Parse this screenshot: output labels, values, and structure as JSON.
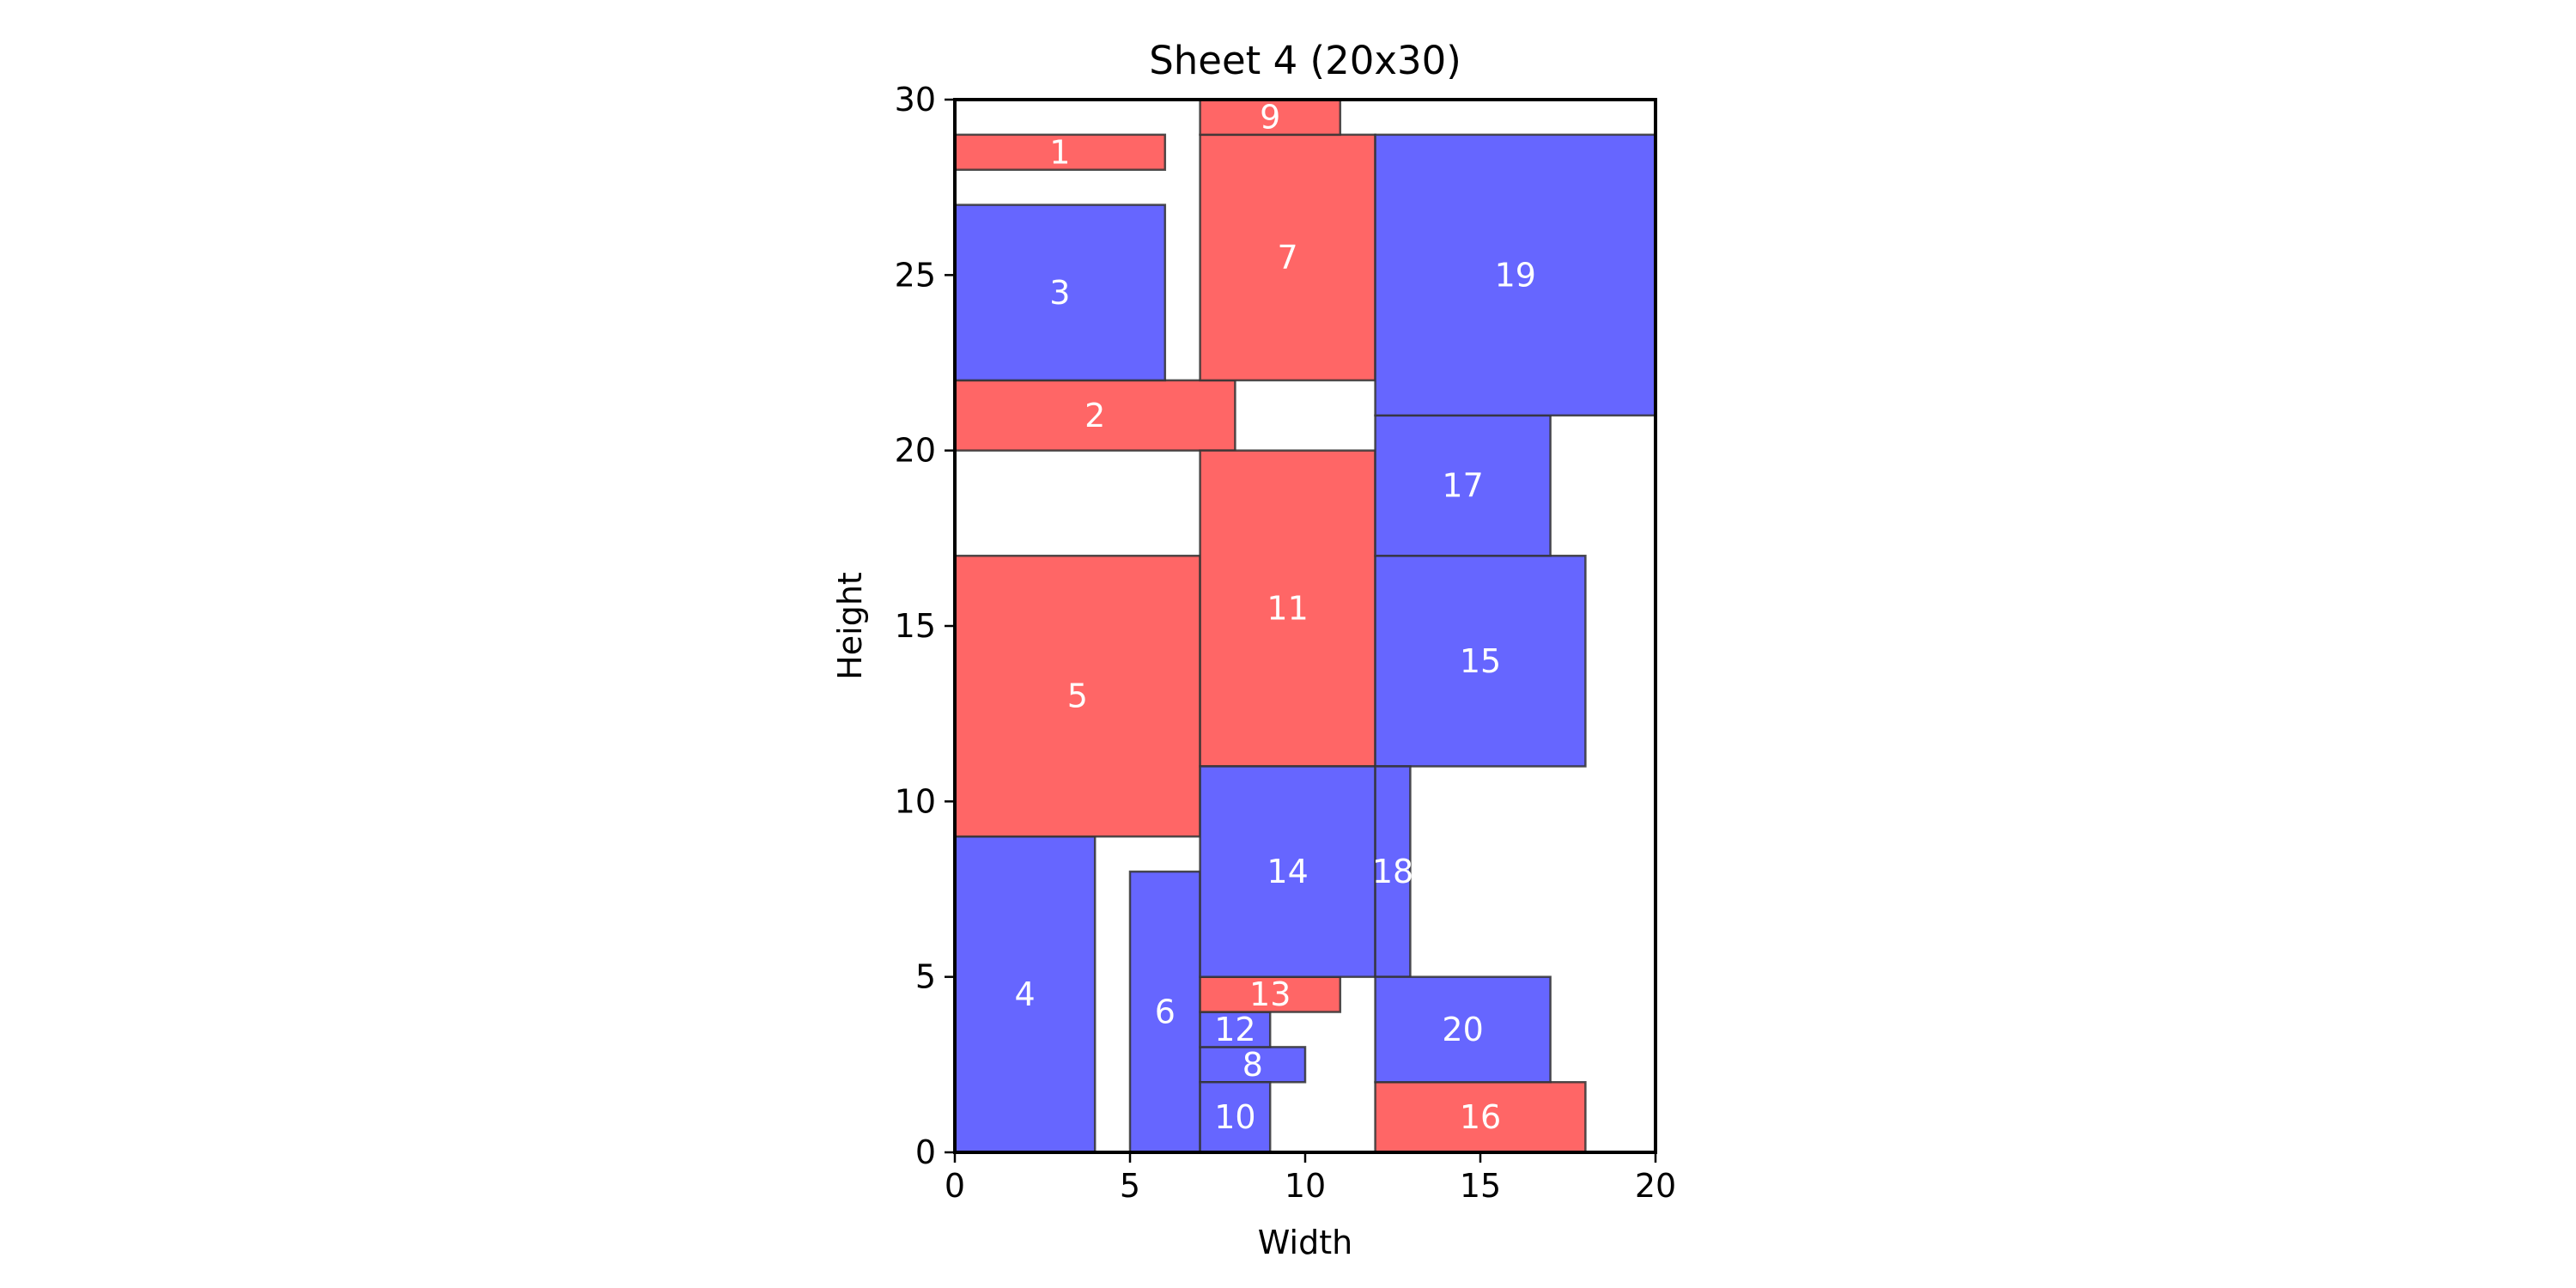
{
  "chart_data": {
    "type": "rectangle-packing",
    "title": "Sheet 4 (20x30)",
    "xlabel": "Width",
    "ylabel": "Height",
    "xlim": [
      0,
      20
    ],
    "ylim": [
      0,
      30
    ],
    "xticks": [
      "0",
      "5",
      "10",
      "15",
      "20"
    ],
    "yticks": [
      "0",
      "5",
      "10",
      "15",
      "20",
      "25",
      "30"
    ],
    "grid": false,
    "colors": {
      "red": "#ff6666",
      "blue": "#6666ff"
    },
    "pieces": [
      {
        "id": "1",
        "x": 0,
        "y": 28,
        "w": 6,
        "h": 1,
        "color": "red"
      },
      {
        "id": "2",
        "x": 0,
        "y": 20,
        "w": 8,
        "h": 2,
        "color": "red"
      },
      {
        "id": "3",
        "x": 0,
        "y": 22,
        "w": 6,
        "h": 5,
        "color": "blue"
      },
      {
        "id": "4",
        "x": 0,
        "y": 0,
        "w": 4,
        "h": 9,
        "color": "blue"
      },
      {
        "id": "5",
        "x": 0,
        "y": 9,
        "w": 7,
        "h": 8,
        "color": "red"
      },
      {
        "id": "6",
        "x": 5,
        "y": 0,
        "w": 2,
        "h": 8,
        "color": "blue"
      },
      {
        "id": "7",
        "x": 7,
        "y": 22,
        "w": 5,
        "h": 7,
        "color": "red"
      },
      {
        "id": "8",
        "x": 7,
        "y": 2,
        "w": 3,
        "h": 1,
        "color": "blue"
      },
      {
        "id": "9",
        "x": 7,
        "y": 29,
        "w": 4,
        "h": 1,
        "color": "red"
      },
      {
        "id": "10",
        "x": 7,
        "y": 0,
        "w": 2,
        "h": 2,
        "color": "blue"
      },
      {
        "id": "11",
        "x": 7,
        "y": 11,
        "w": 5,
        "h": 9,
        "color": "red"
      },
      {
        "id": "12",
        "x": 7,
        "y": 3,
        "w": 2,
        "h": 1,
        "color": "blue"
      },
      {
        "id": "13",
        "x": 7,
        "y": 4,
        "w": 4,
        "h": 1,
        "color": "red"
      },
      {
        "id": "14",
        "x": 7,
        "y": 5,
        "w": 5,
        "h": 6,
        "color": "blue"
      },
      {
        "id": "15",
        "x": 12,
        "y": 11,
        "w": 6,
        "h": 6,
        "color": "blue"
      },
      {
        "id": "16",
        "x": 12,
        "y": 0,
        "w": 6,
        "h": 2,
        "color": "red"
      },
      {
        "id": "17",
        "x": 12,
        "y": 17,
        "w": 5,
        "h": 4,
        "color": "blue"
      },
      {
        "id": "18",
        "x": 12,
        "y": 5,
        "w": 1,
        "h": 6,
        "color": "blue"
      },
      {
        "id": "19",
        "x": 12,
        "y": 21,
        "w": 8,
        "h": 8,
        "color": "blue"
      },
      {
        "id": "20",
        "x": 12,
        "y": 2,
        "w": 5,
        "h": 3,
        "color": "blue"
      }
    ]
  }
}
